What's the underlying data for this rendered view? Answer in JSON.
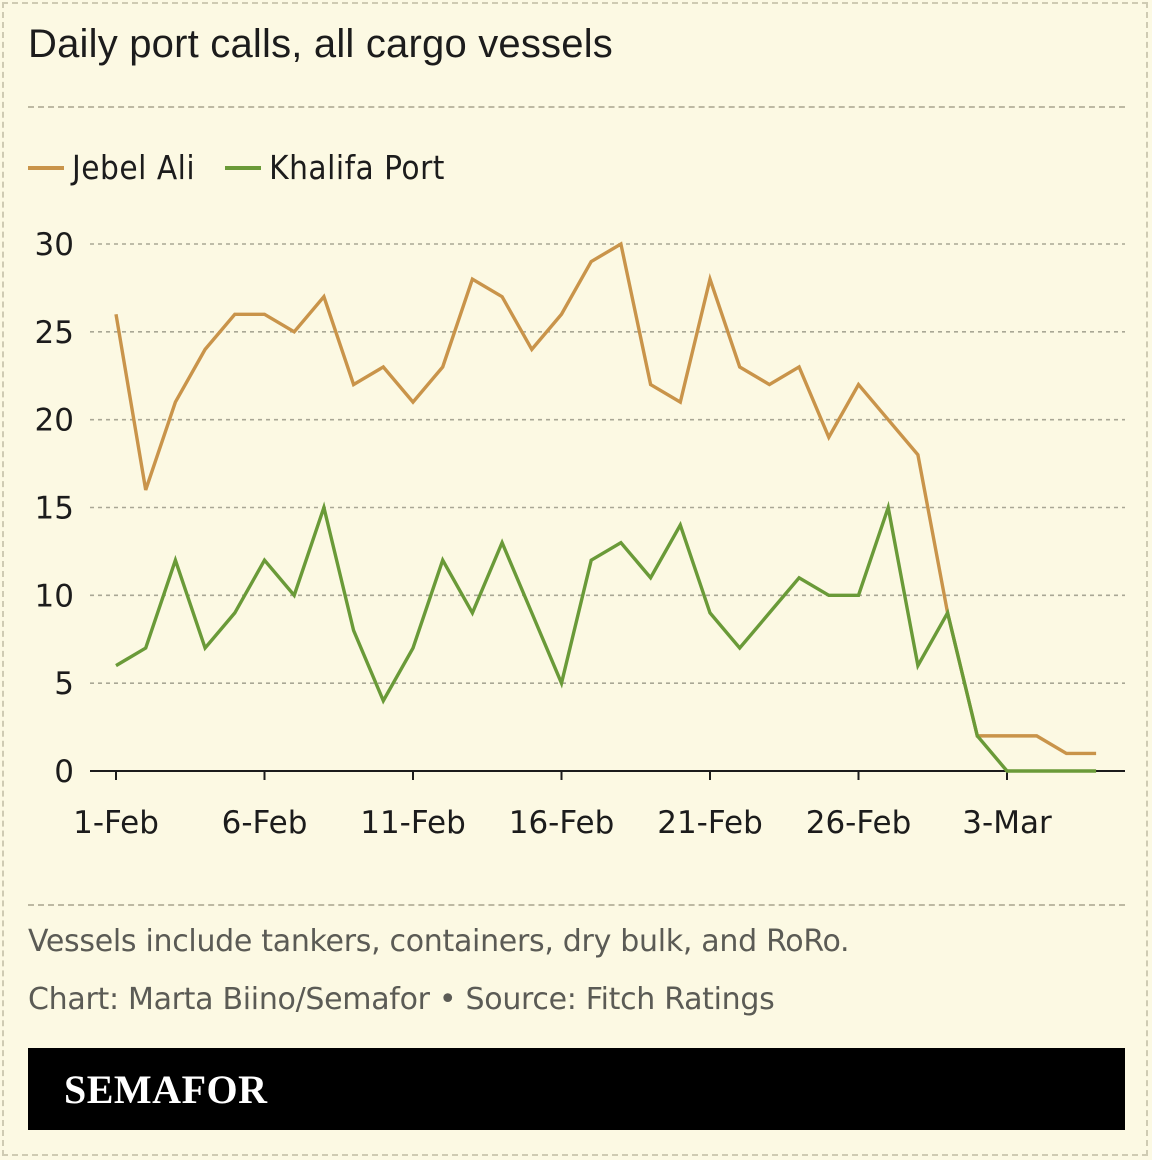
{
  "header": {
    "title": "Daily port calls, all cargo vessels"
  },
  "legend": [
    {
      "label": "Jebel Ali",
      "color": "#c9944a"
    },
    {
      "label": "Khalifa Port",
      "color": "#6a9a38"
    }
  ],
  "chart_data": {
    "type": "line",
    "x": [
      "1-Feb",
      "2-Feb",
      "3-Feb",
      "4-Feb",
      "5-Feb",
      "6-Feb",
      "7-Feb",
      "8-Feb",
      "9-Feb",
      "10-Feb",
      "11-Feb",
      "12-Feb",
      "13-Feb",
      "14-Feb",
      "15-Feb",
      "16-Feb",
      "17-Feb",
      "18-Feb",
      "19-Feb",
      "20-Feb",
      "21-Feb",
      "22-Feb",
      "23-Feb",
      "24-Feb",
      "25-Feb",
      "26-Feb",
      "27-Feb",
      "28-Feb",
      "1-Mar",
      "2-Mar",
      "3-Mar",
      "4-Mar",
      "5-Mar",
      "6-Mar"
    ],
    "series": [
      {
        "name": "Jebel Ali",
        "color": "#c9944a",
        "values": [
          26,
          16,
          21,
          24,
          26,
          26,
          25,
          27,
          22,
          23,
          21,
          23,
          28,
          27,
          24,
          26,
          29,
          30,
          22,
          21,
          28,
          23,
          22,
          23,
          19,
          22,
          20,
          18,
          9,
          2,
          2,
          2,
          1,
          1
        ]
      },
      {
        "name": "Khalifa Port",
        "color": "#6a9a38",
        "values": [
          6,
          7,
          12,
          7,
          9,
          12,
          10,
          15,
          8,
          4,
          7,
          12,
          9,
          13,
          9,
          5,
          12,
          13,
          11,
          14,
          9,
          7,
          9,
          11,
          10,
          10,
          15,
          6,
          9,
          2,
          0,
          0,
          0,
          0
        ]
      }
    ],
    "x_tick_labels": [
      "1-Feb",
      "6-Feb",
      "11-Feb",
      "16-Feb",
      "21-Feb",
      "26-Feb",
      "3-Mar"
    ],
    "y_ticks": [
      0,
      5,
      10,
      15,
      20,
      25,
      30
    ],
    "ylim": [
      0,
      30
    ],
    "grid": true,
    "legend_position": "top-left"
  },
  "footer": {
    "note": "Vessels include tankers, containers, dry bulk, and RoRo.",
    "credit": "Chart: Marta Biino/Semafor • Source: Fitch Ratings",
    "brand": "SEMAFOR"
  }
}
